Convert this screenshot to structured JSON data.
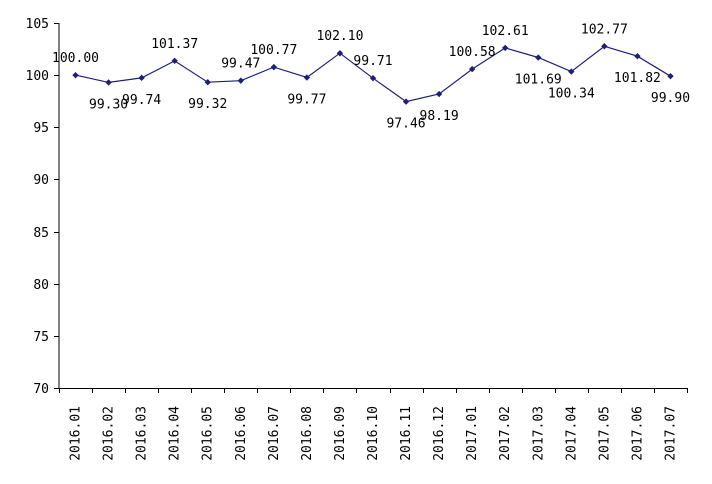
{
  "chart_data": {
    "type": "line",
    "title": "",
    "xlabel": "",
    "ylabel": "",
    "ylim": [
      70,
      105
    ],
    "yticks": [
      70,
      75,
      80,
      85,
      90,
      95,
      100,
      105
    ],
    "grid": false,
    "legend": "none",
    "categories": [
      "2016.01",
      "2016.02",
      "2016.03",
      "2016.04",
      "2016.05",
      "2016.06",
      "2016.07",
      "2016.08",
      "2016.09",
      "2016.10",
      "2016.11",
      "2016.12",
      "2017.01",
      "2017.02",
      "2017.03",
      "2017.04",
      "2017.05",
      "2017.06",
      "2017.07"
    ],
    "series": [
      {
        "values": [
          100.0,
          99.3,
          99.74,
          101.37,
          99.32,
          99.47,
          100.77,
          99.77,
          102.1,
          99.71,
          97.46,
          98.19,
          100.58,
          102.61,
          101.69,
          100.34,
          102.77,
          101.82,
          99.9
        ],
        "labels": [
          "100.00",
          "99.30",
          "99.74",
          "101.37",
          "99.32",
          "99.47",
          "100.77",
          "99.77",
          "102.10",
          "99.71",
          "97.46",
          "98.19",
          "100.58",
          "102.61",
          "101.69",
          "100.34",
          "102.77",
          "101.82",
          "99.90"
        ],
        "label_position": [
          "above",
          "below",
          "below",
          "above",
          "below",
          "above",
          "above",
          "below",
          "above",
          "above",
          "below",
          "below",
          "above",
          "above",
          "below",
          "below",
          "above",
          "below",
          "below"
        ],
        "color": "#1f1f7a"
      }
    ]
  }
}
